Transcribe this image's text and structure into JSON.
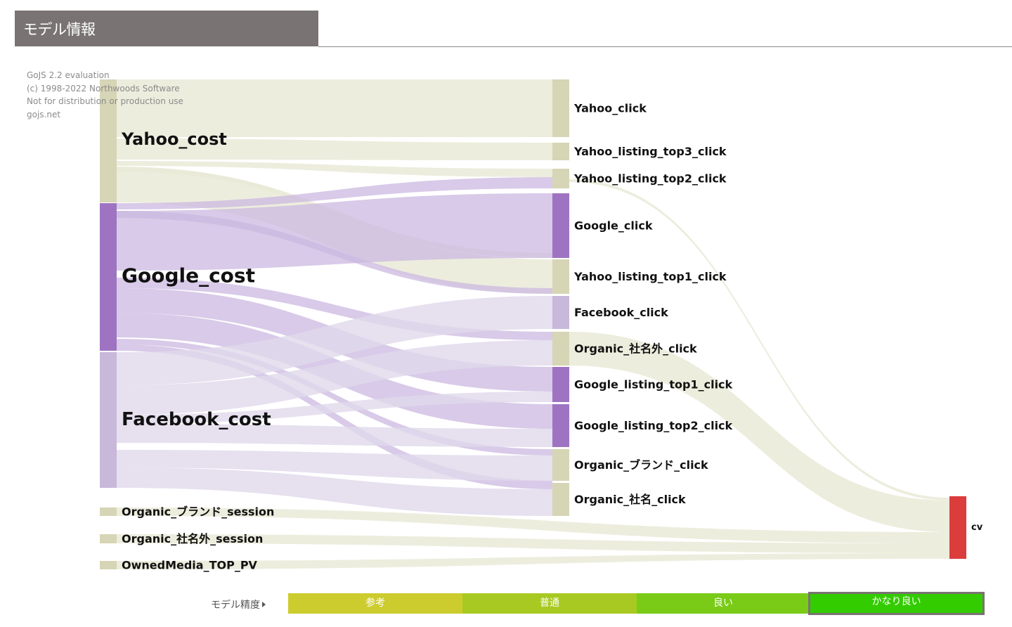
{
  "header": {
    "title": "モデル情報"
  },
  "watermark": {
    "lines": [
      "GoJS 2.2 evaluation",
      "(c) 1998-2022 Northwoods Software",
      "Not for distribution or production use",
      "gojs.net"
    ]
  },
  "colors": {
    "yahoo": "#d6d5b5",
    "google": "#9e74c2",
    "facebook": "#c8b8da",
    "organic": "#d6d5b5",
    "cv": "#db3c3c",
    "link_beige": "#e9e8d6",
    "link_purple": "#cbb8e0",
    "link_lightpurple": "#e0d8eb"
  },
  "sankey": {
    "nodes": [
      {
        "id": "Yahoo_cost",
        "label": "Yahoo_cost",
        "color": "yahoo",
        "big": true
      },
      {
        "id": "Google_cost",
        "label": "Google_cost",
        "color": "google",
        "big": true
      },
      {
        "id": "Facebook_cost",
        "label": "Facebook_cost",
        "color": "facebook",
        "big": true
      },
      {
        "id": "Organic_brand_session",
        "label": "Organic_ブランド_session",
        "color": "organic"
      },
      {
        "id": "Organic_nonname_session",
        "label": "Organic_社名外_session",
        "color": "organic"
      },
      {
        "id": "OwnedMedia_TOP_PV",
        "label": "OwnedMedia_TOP_PV",
        "color": "organic"
      },
      {
        "id": "Yahoo_click",
        "label": "Yahoo_click",
        "color": "yahoo"
      },
      {
        "id": "Yahoo_listing_top3_click",
        "label": "Yahoo_listing_top3_click",
        "color": "yahoo"
      },
      {
        "id": "Yahoo_listing_top2_click",
        "label": "Yahoo_listing_top2_click",
        "color": "yahoo"
      },
      {
        "id": "Google_click",
        "label": "Google_click",
        "color": "google"
      },
      {
        "id": "Yahoo_listing_top1_click",
        "label": "Yahoo_listing_top1_click",
        "color": "yahoo"
      },
      {
        "id": "Facebook_click",
        "label": "Facebook_click",
        "color": "facebook"
      },
      {
        "id": "Organic_nonname_click",
        "label": "Organic_社名外_click",
        "color": "organic"
      },
      {
        "id": "Google_listing_top1_click",
        "label": "Google_listing_top1_click",
        "color": "google"
      },
      {
        "id": "Google_listing_top2_click",
        "label": "Google_listing_top2_click",
        "color": "google"
      },
      {
        "id": "Organic_brand_click",
        "label": "Organic_ブランド_click",
        "color": "organic"
      },
      {
        "id": "Organic_name_click",
        "label": "Organic_社名_click",
        "color": "organic"
      },
      {
        "id": "cv",
        "label": "cv",
        "color": "cv"
      }
    ]
  },
  "legend": {
    "label": "モデル精度",
    "segments": [
      {
        "label": "参考",
        "color": "#cccc2e",
        "selected": false
      },
      {
        "label": "普通",
        "color": "#a8c922",
        "selected": false
      },
      {
        "label": "良い",
        "color": "#7acb18",
        "selected": false
      },
      {
        "label": "かなり良い",
        "color": "#33cc00",
        "selected": true
      }
    ]
  }
}
